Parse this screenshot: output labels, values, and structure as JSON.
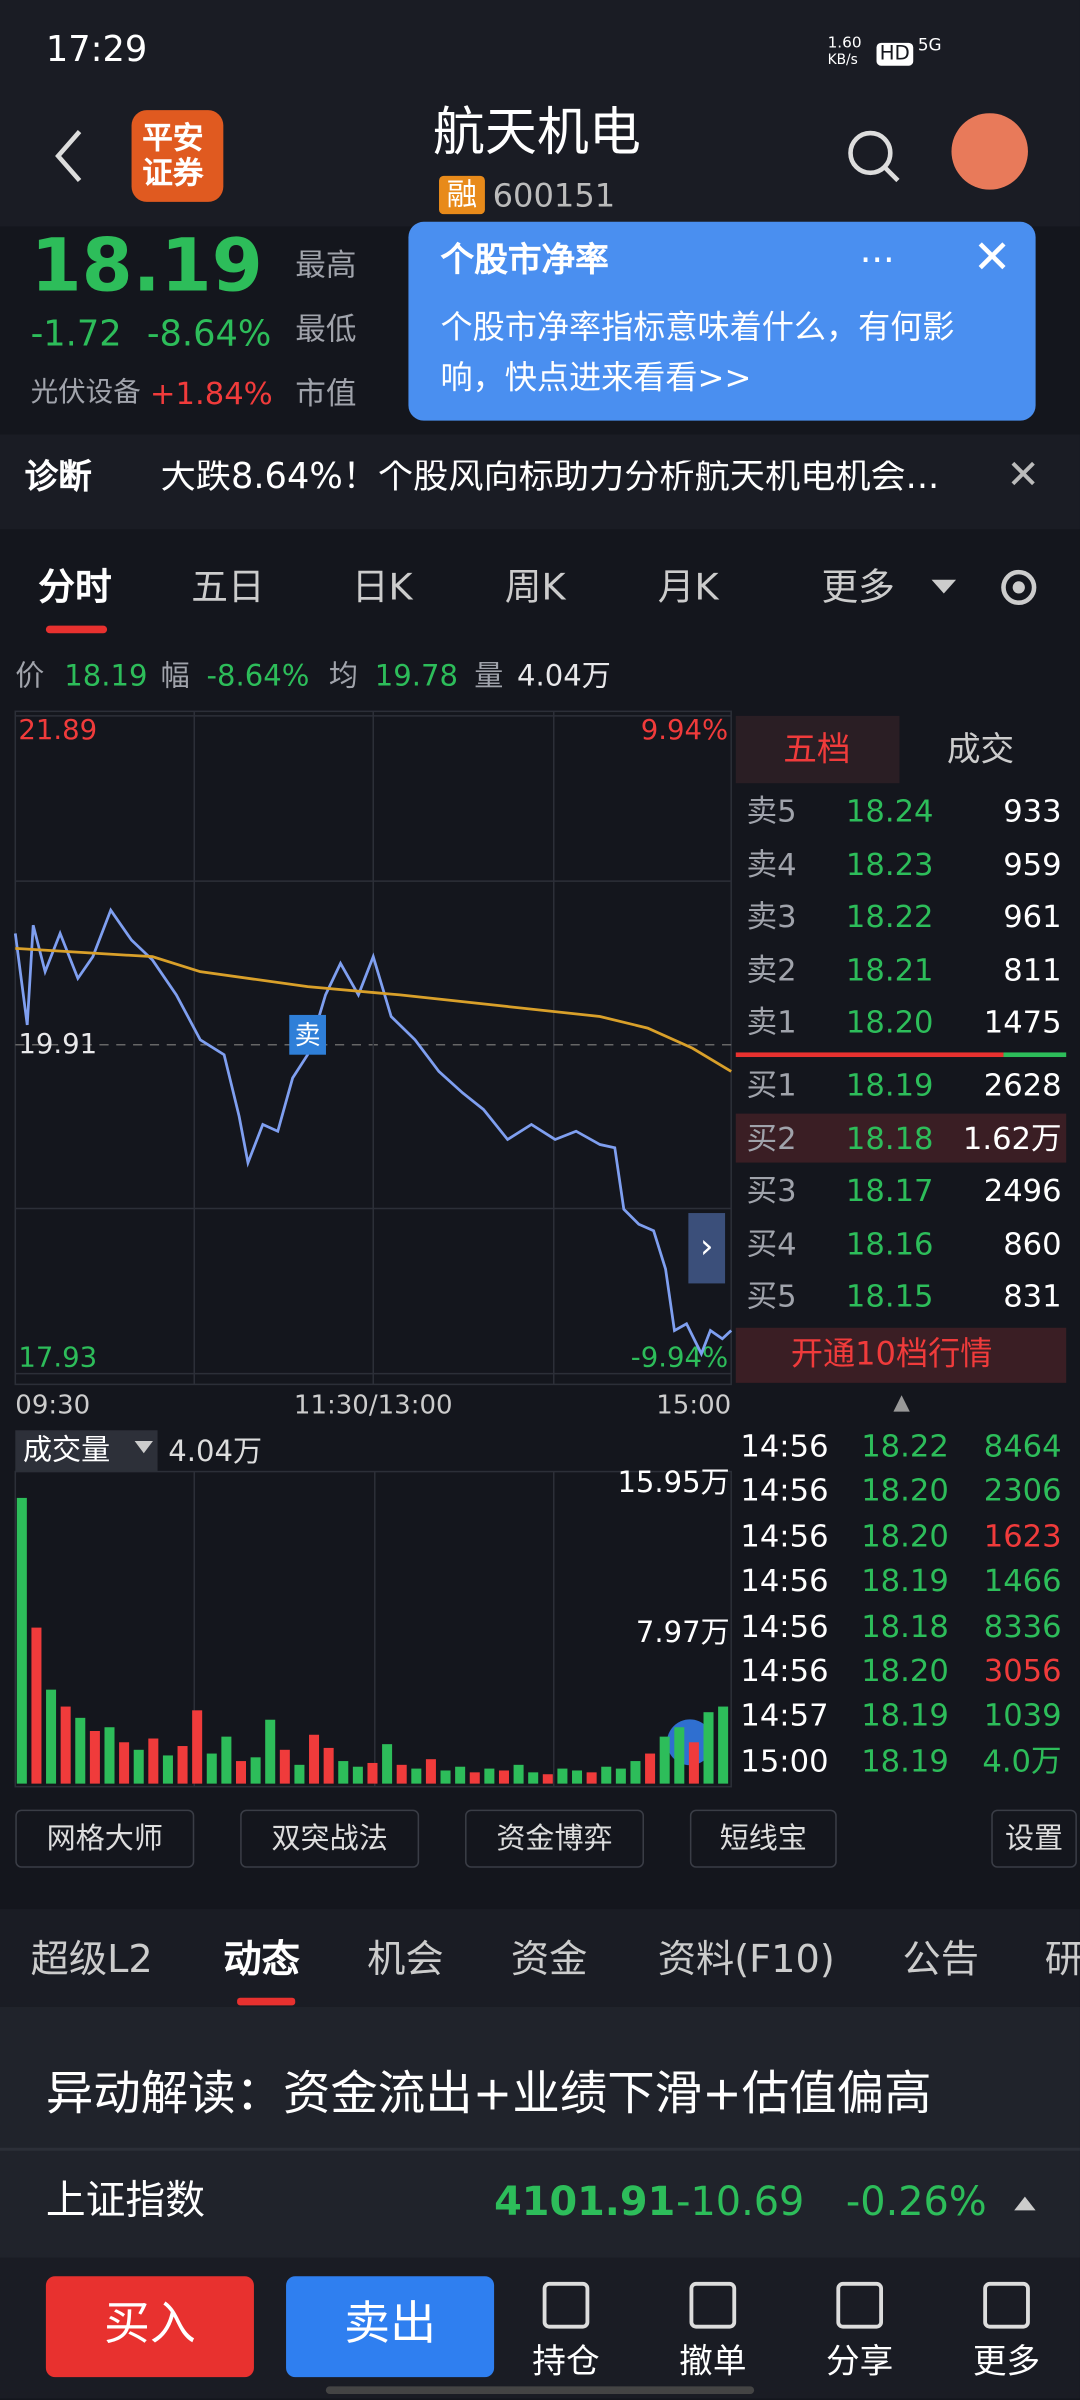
{
  "status_bar": {
    "time": "17:29",
    "speed_value": "1.60",
    "speed_unit": "KB/s",
    "hd": "HD",
    "network": "5G"
  },
  "header": {
    "logo": [
      "平安",
      "证券"
    ],
    "title": "航天机电",
    "tag": "融",
    "code": "600151"
  },
  "quote": {
    "price": "18.19",
    "change": "-1.72",
    "change_pct": "-8.64%",
    "sector": "光伏设备",
    "sector_change": "+1.84%",
    "field_labels": [
      "最高",
      "最低",
      "市值"
    ]
  },
  "popup": {
    "title": "个股市净率",
    "body": "个股市净率指标意味着什么，有何影响，快点进来看看>>"
  },
  "diagnosis": {
    "label": "诊断",
    "text": "大跌8.64%！个股风向标助力分析航天机电机会..."
  },
  "chart_tabs": [
    "分时",
    "五日",
    "日K",
    "周K",
    "月K",
    "更多"
  ],
  "info_bar": [
    {
      "label": "价",
      "value": "18.19"
    },
    {
      "label": "幅",
      "value": "-8.64%"
    },
    {
      "label": "均",
      "value": "19.78"
    },
    {
      "label": "量",
      "value": "4.04万"
    }
  ],
  "chart_data": [
    {
      "type": "line",
      "grid": true,
      "xlim": [
        0,
        240
      ],
      "xticks": [
        {
          "value": 0,
          "label": "09:30"
        },
        {
          "value": 120,
          "label": "11:30/13:00"
        },
        {
          "value": 240,
          "label": "15:00"
        }
      ],
      "ylim": [
        17.93,
        21.89
      ],
      "yticks": [
        21.89,
        19.91,
        17.93
      ],
      "y2lim": [
        -9.94,
        9.94
      ],
      "y2ticks": [
        {
          "value": 9.94,
          "label": "9.94%"
        },
        {
          "value": -9.94,
          "label": "-9.94%"
        }
      ],
      "series": [
        {
          "color": "#7f9ff0",
          "x": [
            0,
            4,
            6,
            10,
            15,
            21,
            26,
            32,
            39,
            46,
            54,
            62,
            70,
            75,
            78,
            83,
            88,
            93,
            98,
            104,
            109,
            115,
            120,
            126,
            134,
            142,
            150,
            157,
            165,
            173,
            181,
            188,
            196,
            201,
            204,
            209,
            214,
            218,
            221,
            225,
            230,
            233,
            237,
            240
          ],
          "values": [
            20.58,
            20.03,
            20.63,
            20.35,
            20.58,
            20.31,
            20.44,
            20.72,
            20.54,
            20.42,
            20.21,
            19.94,
            19.85,
            19.48,
            19.2,
            19.43,
            19.39,
            19.71,
            19.85,
            20.21,
            20.4,
            20.21,
            20.44,
            20.08,
            19.94,
            19.75,
            19.62,
            19.52,
            19.34,
            19.43,
            19.34,
            19.39,
            19.31,
            19.29,
            18.92,
            18.83,
            18.79,
            18.56,
            18.19,
            18.23,
            18.05,
            18.19,
            18.14,
            18.19
          ]
        },
        {
          "color": "#d9a02a",
          "x": [
            0,
            46,
            62,
            98,
            129,
            165,
            196,
            212,
            227,
            240
          ],
          "values": [
            20.49,
            20.44,
            20.35,
            20.26,
            20.21,
            20.14,
            20.08,
            20.01,
            19.89,
            19.75
          ]
        }
      ],
      "markers": [
        {
          "label": "卖",
          "x": 98,
          "value": 19.97
        }
      ]
    },
    {
      "type": "bar",
      "title": "成交量",
      "subtitle": "4.04万",
      "ylim": [
        0,
        15.95
      ],
      "yticks": [
        {
          "value": 15.95,
          "label": "15.95万"
        },
        {
          "value": 7.97,
          "label": "7.97万"
        }
      ],
      "values": [
        15.2,
        8.3,
        5.0,
        4.1,
        3.5,
        2.8,
        3.0,
        2.2,
        1.8,
        2.4,
        1.5,
        2.0,
        3.9,
        1.6,
        2.5,
        1.2,
        1.4,
        3.4,
        1.8,
        1.0,
        2.6,
        1.9,
        1.2,
        0.9,
        1.1,
        2.1,
        1.0,
        0.8,
        1.3,
        0.7,
        0.9,
        0.6,
        0.8,
        0.7,
        1.0,
        0.6,
        0.5,
        0.8,
        0.7,
        0.6,
        0.9,
        0.8,
        1.2,
        1.6,
        2.5,
        3.0,
        2.2,
        3.8,
        4.1
      ],
      "colors": [
        "#2dbd5a",
        "#f03b3b",
        "#2dbd5a",
        "#f03b3b",
        "#2dbd5a",
        "#f03b3b",
        "#2dbd5a",
        "#f03b3b",
        "#2dbd5a",
        "#f03b3b",
        "#2dbd5a",
        "#f03b3b",
        "#f03b3b",
        "#2dbd5a",
        "#2dbd5a",
        "#f03b3b",
        "#2dbd5a",
        "#2dbd5a",
        "#f03b3b",
        "#2dbd5a",
        "#f03b3b",
        "#f03b3b",
        "#2dbd5a",
        "#2dbd5a",
        "#f03b3b",
        "#2dbd5a",
        "#f03b3b",
        "#2dbd5a",
        "#f03b3b",
        "#2dbd5a",
        "#2dbd5a",
        "#f03b3b",
        "#2dbd5a",
        "#f03b3b",
        "#2dbd5a",
        "#2dbd5a",
        "#f03b3b",
        "#2dbd5a",
        "#2dbd5a",
        "#f03b3b",
        "#2dbd5a",
        "#2dbd5a",
        "#2dbd5a",
        "#f03b3b",
        "#2dbd5a",
        "#2dbd5a",
        "#f03b3b",
        "#2dbd5a",
        "#2dbd5a"
      ]
    }
  ],
  "order_book": {
    "tabs": [
      "五档",
      "成交"
    ],
    "asks": [
      {
        "label": "卖5",
        "price": "18.24",
        "volume": "933"
      },
      {
        "label": "卖4",
        "price": "18.23",
        "volume": "959"
      },
      {
        "label": "卖3",
        "price": "18.22",
        "volume": "961"
      },
      {
        "label": "卖2",
        "price": "18.21",
        "volume": "811"
      },
      {
        "label": "卖1",
        "price": "18.20",
        "volume": "1475"
      }
    ],
    "bids": [
      {
        "label": "买1",
        "price": "18.19",
        "volume": "2628"
      },
      {
        "label": "买2",
        "price": "18.18",
        "volume": "1.62万"
      },
      {
        "label": "买3",
        "price": "18.17",
        "volume": "2496"
      },
      {
        "label": "买4",
        "price": "18.16",
        "volume": "860"
      },
      {
        "label": "买5",
        "price": "18.15",
        "volume": "831"
      }
    ],
    "upgrade": "开通10档行情"
  },
  "trades": [
    {
      "time": "14:56",
      "price": "18.22",
      "volume": "8464",
      "color": "#2dbd5a"
    },
    {
      "time": "14:56",
      "price": "18.20",
      "volume": "2306",
      "color": "#2dbd5a"
    },
    {
      "time": "14:56",
      "price": "18.20",
      "volume": "1623",
      "color": "#f03b3b"
    },
    {
      "time": "14:56",
      "price": "18.19",
      "volume": "1466",
      "color": "#2dbd5a"
    },
    {
      "time": "14:56",
      "price": "18.18",
      "volume": "8336",
      "color": "#2dbd5a"
    },
    {
      "time": "14:56",
      "price": "18.20",
      "volume": "3056",
      "color": "#f03b3b"
    },
    {
      "time": "14:57",
      "price": "18.19",
      "volume": "1039",
      "color": "#2dbd5a"
    },
    {
      "time": "15:00",
      "price": "18.19",
      "volume": "4.0万",
      "color": "#2dbd5a"
    }
  ],
  "tools": [
    "网格大师",
    "双突战法",
    "资金博弈",
    "短线宝"
  ],
  "settings": "设置",
  "info_tabs": [
    "超级L2",
    "动态",
    "机会",
    "资金",
    "资料(F10)",
    "公告",
    "研"
  ],
  "alert": "异动解读：资金流出+业绩下滑+估值偏高",
  "index": {
    "name": "上证指数",
    "value": "4101.91",
    "change": "-10.69",
    "change_pct": "-0.26%"
  },
  "bottom_bar": {
    "buy": "买入",
    "sell": "卖出",
    "actions": [
      "持仓",
      "撤单",
      "分享",
      "更多"
    ]
  }
}
